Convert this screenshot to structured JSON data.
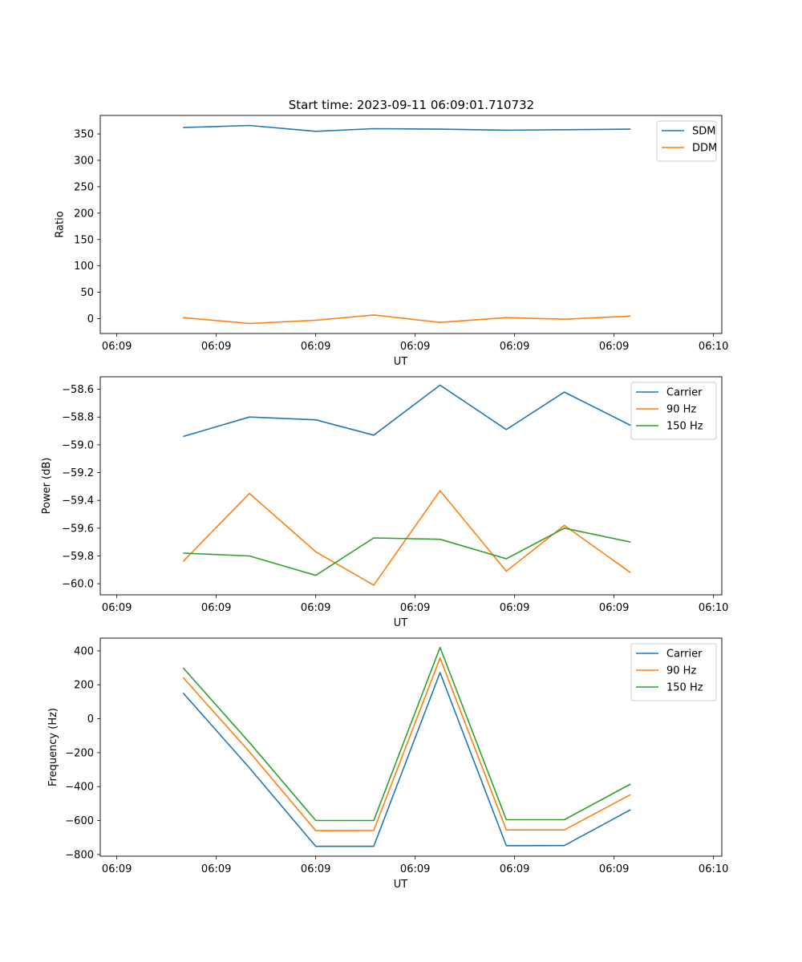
{
  "figure": {
    "title": "Start time: 2023-09-11 06:09:01.710732"
  },
  "chart_data": [
    {
      "type": "line",
      "xlabel": "UT",
      "ylabel": "Ratio",
      "x": [
        0.8,
        1.6,
        2.4,
        3.1,
        3.9,
        4.7,
        5.4,
        6.2
      ],
      "xlim": [
        -0.2,
        7.3
      ],
      "xticks": [
        0,
        1.2,
        2.4,
        3.6,
        4.8,
        6.0,
        7.2
      ],
      "xtick_labels": [
        "06:09",
        "06:09",
        "06:09",
        "06:09",
        "06:09",
        "06:09",
        "06:10"
      ],
      "ylim": [
        -28,
        385
      ],
      "yticks": [
        0,
        50,
        100,
        150,
        200,
        250,
        300,
        350
      ],
      "ytick_labels": [
        "0",
        "50",
        "100",
        "150",
        "200",
        "250",
        "300",
        "350"
      ],
      "legend": "top-right",
      "series": [
        {
          "name": "SDM",
          "color": "#1f77b4",
          "values": [
            362,
            366,
            355,
            360,
            359,
            357,
            358,
            359
          ]
        },
        {
          "name": "DDM",
          "color": "#ff7f0e",
          "values": [
            2,
            -9,
            -3,
            7,
            -7,
            2,
            -1,
            5
          ]
        }
      ]
    },
    {
      "type": "line",
      "xlabel": "UT",
      "ylabel": "Power (dB)",
      "x": [
        0.8,
        1.6,
        2.4,
        3.1,
        3.9,
        4.7,
        5.4,
        6.2
      ],
      "xlim": [
        -0.2,
        7.3
      ],
      "xticks": [
        0,
        1.2,
        2.4,
        3.6,
        4.8,
        6.0,
        7.2
      ],
      "xtick_labels": [
        "06:09",
        "06:09",
        "06:09",
        "06:09",
        "06:09",
        "06:09",
        "06:10"
      ],
      "ylim": [
        -60.08,
        -58.51
      ],
      "yticks": [
        -60.0,
        -59.8,
        -59.6,
        -59.4,
        -59.2,
        -59.0,
        -58.8,
        -58.6
      ],
      "ytick_labels": [
        "−60.0",
        "−59.8",
        "−59.6",
        "−59.4",
        "−59.2",
        "−59.0",
        "−58.8",
        "−58.6"
      ],
      "legend": "top-right",
      "series": [
        {
          "name": "Carrier",
          "color": "#1f77b4",
          "values": [
            -58.94,
            -58.8,
            -58.82,
            -58.93,
            -58.57,
            -58.89,
            -58.62,
            -58.86
          ]
        },
        {
          "name": "90 Hz",
          "color": "#ff7f0e",
          "values": [
            -59.84,
            -59.35,
            -59.77,
            -60.01,
            -59.33,
            -59.91,
            -59.58,
            -59.92
          ]
        },
        {
          "name": "150 Hz",
          "color": "#2ca02c",
          "values": [
            -59.78,
            -59.8,
            -59.94,
            -59.67,
            -59.68,
            -59.82,
            -59.6,
            -59.7
          ]
        }
      ]
    },
    {
      "type": "line",
      "xlabel": "UT",
      "ylabel": "Frequency (Hz)",
      "x": [
        0.8,
        1.6,
        2.4,
        3.1,
        3.9,
        4.7,
        5.4,
        6.2
      ],
      "xlim": [
        -0.2,
        7.3
      ],
      "xticks": [
        0,
        1.2,
        2.4,
        3.6,
        4.8,
        6.0,
        7.2
      ],
      "xtick_labels": [
        "06:09",
        "06:09",
        "06:09",
        "06:09",
        "06:09",
        "06:09",
        "06:10"
      ],
      "ylim": [
        -810,
        475
      ],
      "yticks": [
        -800,
        -600,
        -400,
        -200,
        0,
        200,
        400
      ],
      "ytick_labels": [
        "−800",
        "−600",
        "−400",
        "−200",
        "0",
        "200",
        "400"
      ],
      "legend": "top-right",
      "series": [
        {
          "name": "Carrier",
          "color": "#1f77b4",
          "values": [
            152,
            -290,
            -752,
            -752,
            272,
            -748,
            -747,
            -536
          ]
        },
        {
          "name": "90 Hz",
          "color": "#ff7f0e",
          "values": [
            243,
            -195,
            -660,
            -658,
            358,
            -655,
            -655,
            -447
          ]
        },
        {
          "name": "150 Hz",
          "color": "#2ca02c",
          "values": [
            300,
            -140,
            -600,
            -600,
            420,
            -595,
            -595,
            -385
          ]
        }
      ]
    }
  ]
}
